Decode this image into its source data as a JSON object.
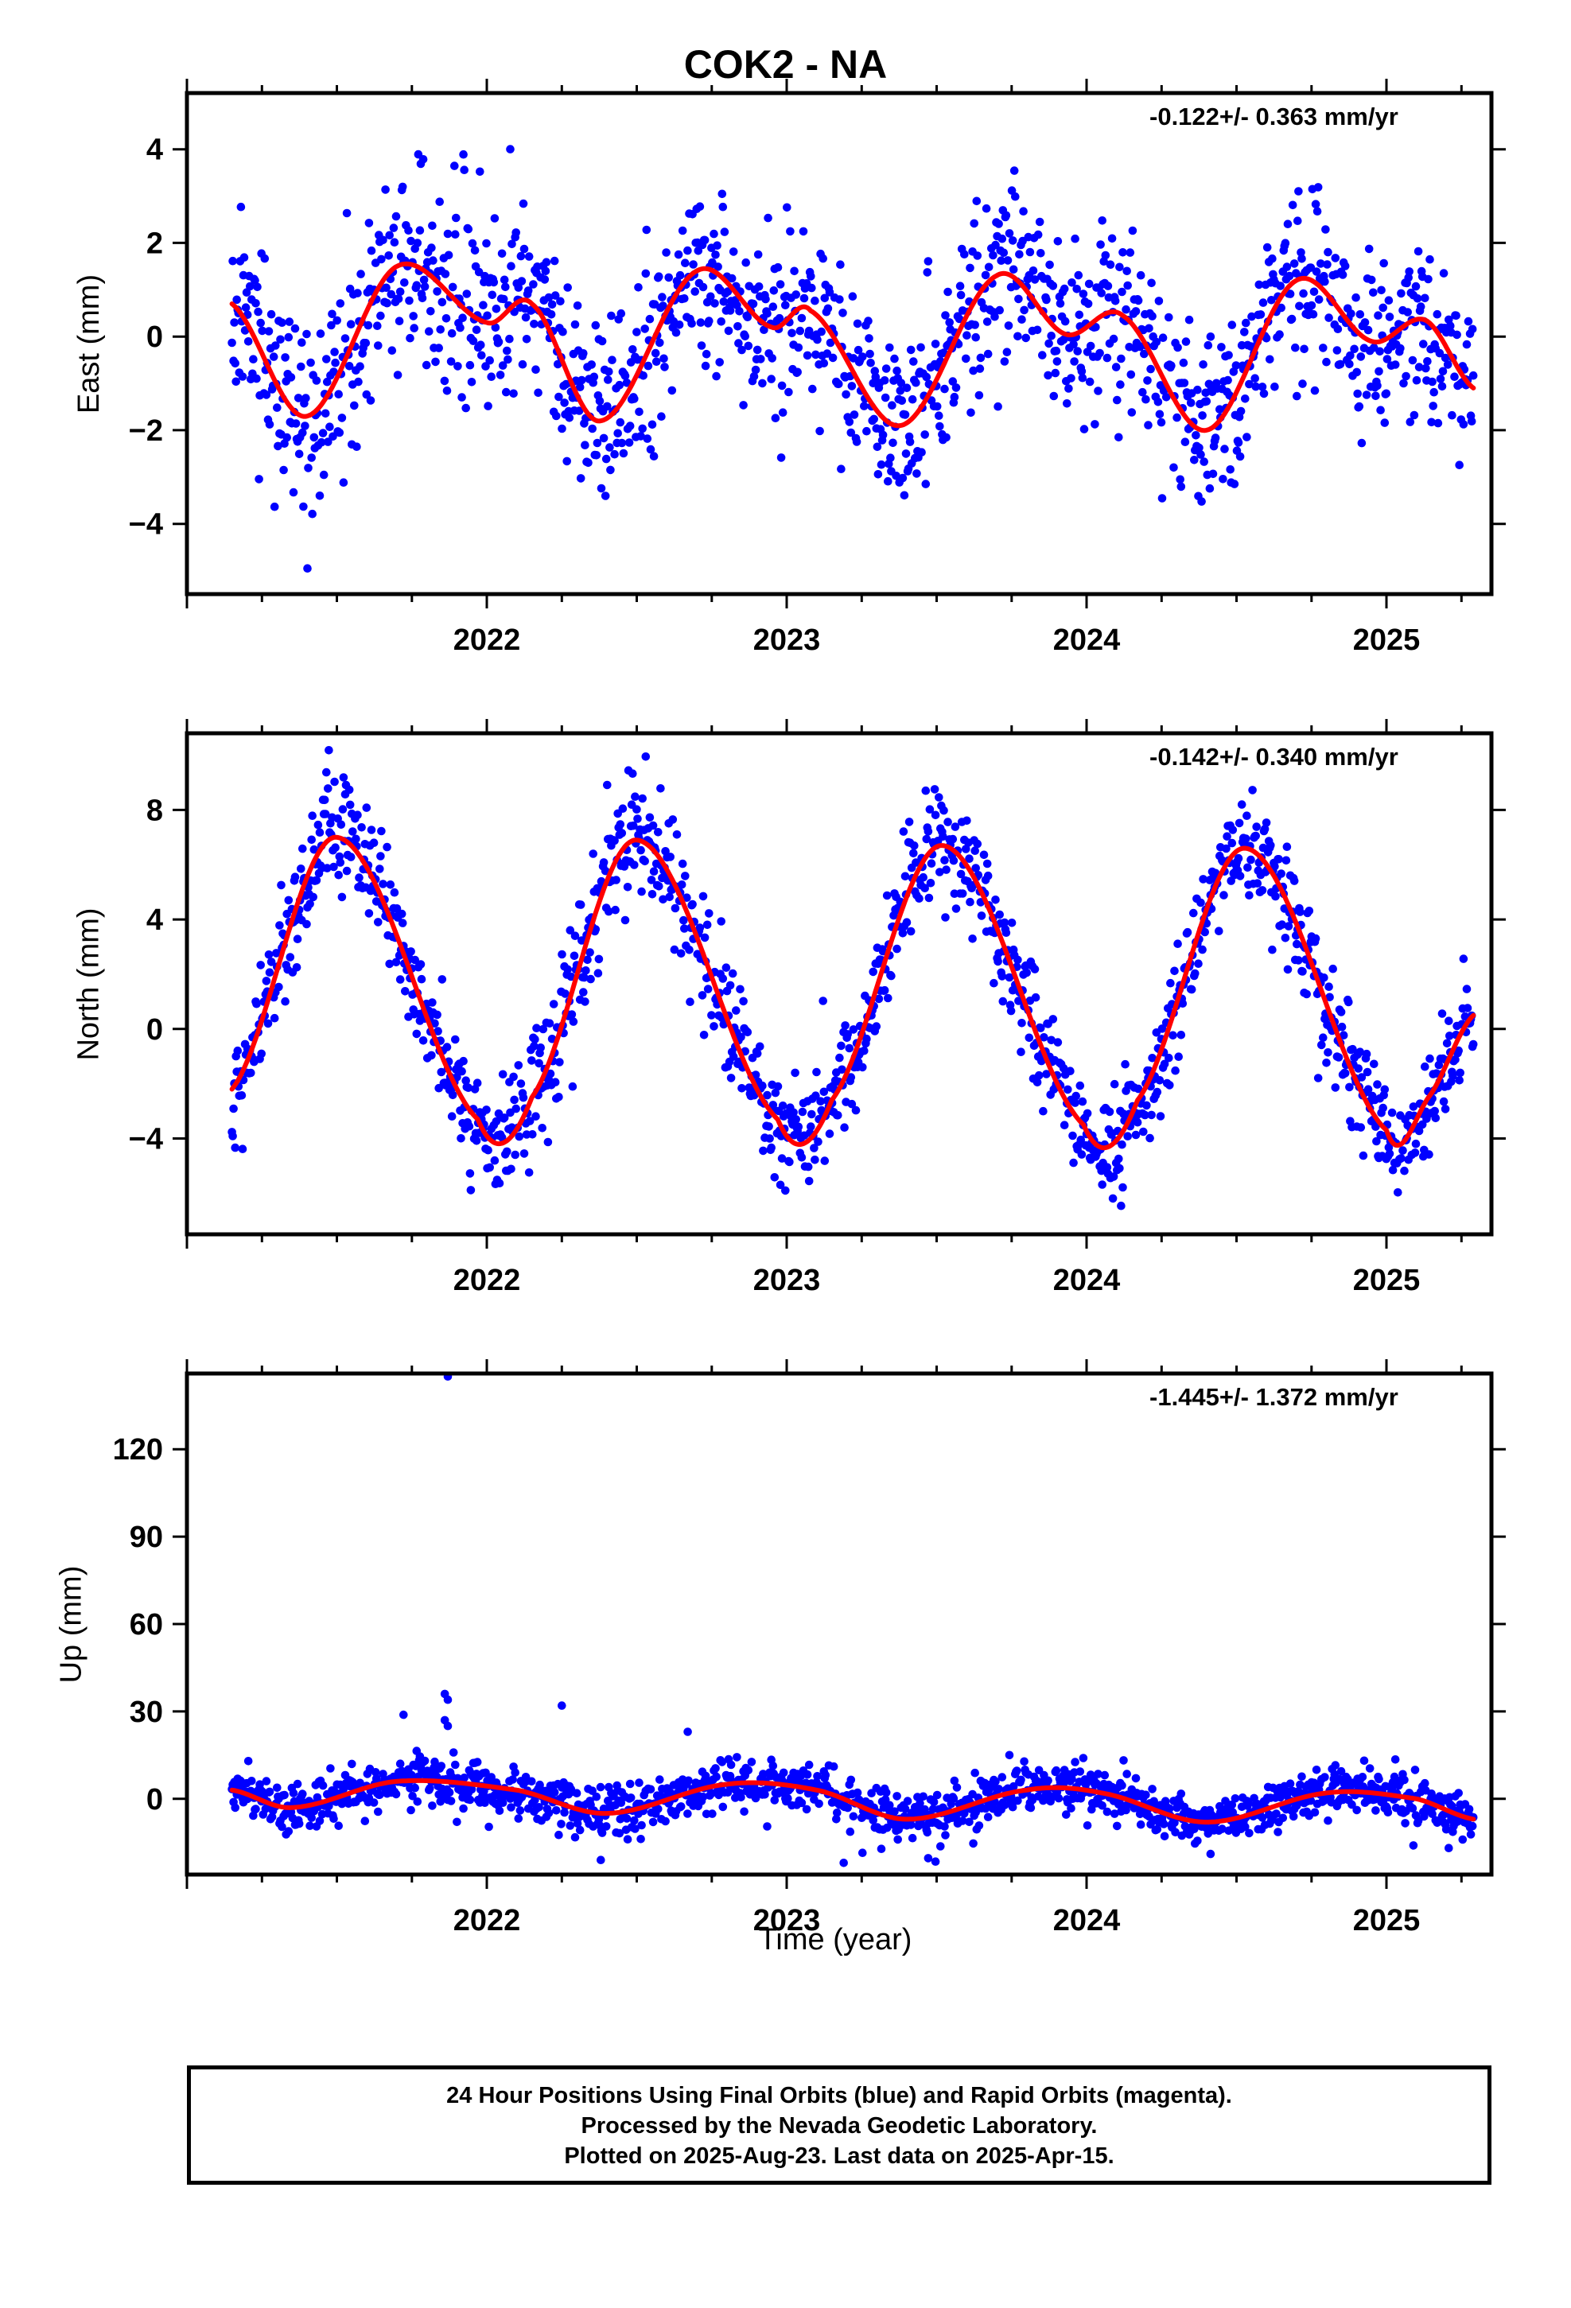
{
  "title": "COK2 - NA",
  "colors": {
    "data_points": "#0000ff",
    "model_fit": "#ff0000",
    "axes": "#000000"
  },
  "footer": {
    "line1": "24 Hour Positions Using Final Orbits (blue) and Rapid Orbits (magenta).",
    "line2": "Processed by the Nevada Geodetic Laboratory.",
    "line3": "Plotted on 2025-Aug-23. Last data on 2025-Apr-15."
  },
  "chart_data": [
    {
      "type": "scatter",
      "panel": "east",
      "title": "",
      "xlabel": "",
      "ylabel": "East (mm)",
      "rate_label": "-0.122+/- 0.363 mm/yr",
      "xlim": [
        2021.0,
        2025.35
      ],
      "ylim": [
        -5.5,
        5.2
      ],
      "x_ticks": [
        2022,
        2023,
        2024,
        2025
      ],
      "y_ticks": [
        -4,
        -2,
        0,
        2,
        4
      ],
      "y_tick_labels": [
        "−4",
        "−2",
        "0",
        "2",
        "4"
      ],
      "grid": false,
      "data_range": [
        2021.15,
        2025.29
      ],
      "series": [
        {
          "name": "",
          "kind": "points",
          "color": "#0000ff",
          "noise_sd": 0.95,
          "seed": 11
        },
        {
          "name": "",
          "kind": "model",
          "color": "#ff0000",
          "x": [
            2021.15,
            2021.4,
            2021.7,
            2022.0,
            2022.15,
            2022.38,
            2022.7,
            2022.95,
            2023.08,
            2023.38,
            2023.7,
            2023.93,
            2024.12,
            2024.4,
            2024.7,
            2024.95,
            2025.13,
            2025.29
          ],
          "values": [
            0.7,
            -1.7,
            1.5,
            0.3,
            0.7,
            -1.8,
            1.4,
            0.2,
            0.55,
            -1.9,
            1.3,
            0.05,
            0.45,
            -2.0,
            1.2,
            -0.1,
            0.35,
            -1.1
          ]
        }
      ]
    },
    {
      "type": "scatter",
      "panel": "north",
      "title": "",
      "xlabel": "",
      "ylabel": "North (mm)",
      "rate_label": "-0.142+/- 0.340 mm/yr",
      "xlim": [
        2021.0,
        2025.35
      ],
      "ylim": [
        -7.5,
        10.8
      ],
      "x_ticks": [
        2022,
        2023,
        2024,
        2025
      ],
      "y_ticks": [
        -4,
        0,
        4,
        8
      ],
      "y_tick_labels": [
        "−4",
        "0",
        "4",
        "8"
      ],
      "grid": false,
      "data_range": [
        2021.15,
        2025.29
      ],
      "series": [
        {
          "name": "",
          "kind": "points",
          "color": "#0000ff",
          "noise_sd": 1.0,
          "seed": 23
        },
        {
          "name": "",
          "kind": "model",
          "color": "#ff0000",
          "x": [
            2021.15,
            2021.5,
            2021.97,
            2022.15,
            2022.5,
            2022.97,
            2023.15,
            2023.52,
            2023.99,
            2024.17,
            2024.53,
            2025.0,
            2025.14,
            2025.29
          ],
          "values": [
            -2.2,
            7.0,
            -3.3,
            -2.5,
            6.9,
            -3.3,
            -2.6,
            6.7,
            -3.5,
            -2.6,
            6.6,
            -3.7,
            -2.5,
            0.5
          ]
        }
      ]
    },
    {
      "type": "scatter",
      "panel": "up",
      "title": "",
      "xlabel": "Time (year)",
      "ylabel": "Up (mm)",
      "rate_label": "-1.445+/- 1.372 mm/yr",
      "xlim": [
        2021.0,
        2025.35
      ],
      "ylim": [
        -26,
        146
      ],
      "x_ticks": [
        2022,
        2023,
        2024,
        2025
      ],
      "y_ticks": [
        0,
        30,
        60,
        90,
        120
      ],
      "y_tick_labels": [
        "0",
        "30",
        "60",
        "90",
        "120"
      ],
      "grid": false,
      "data_range": [
        2021.15,
        2025.29
      ],
      "outliers": [
        {
          "x": 2021.87,
          "y": 145
        },
        {
          "x": 2021.86,
          "y": 36
        },
        {
          "x": 2021.87,
          "y": 34
        },
        {
          "x": 2021.86,
          "y": 27
        },
        {
          "x": 2021.87,
          "y": 25
        },
        {
          "x": 2022.25,
          "y": 32
        },
        {
          "x": 2022.67,
          "y": 23
        },
        {
          "x": 2023.19,
          "y": -22
        },
        {
          "x": 2022.38,
          "y": -21
        }
      ],
      "series": [
        {
          "name": "",
          "kind": "points",
          "color": "#0000ff",
          "noise_sd": 4.2,
          "seed": 37
        },
        {
          "name": "",
          "kind": "model",
          "color": "#ff0000",
          "x": [
            2021.15,
            2021.35,
            2021.7,
            2022.1,
            2022.4,
            2022.8,
            2023.1,
            2023.4,
            2023.8,
            2024.05,
            2024.4,
            2024.8,
            2025.1,
            2025.29
          ],
          "values": [
            3,
            -3,
            6,
            3,
            -5,
            5,
            3,
            -7,
            3,
            2,
            -8,
            2,
            0,
            -7
          ]
        }
      ]
    }
  ]
}
